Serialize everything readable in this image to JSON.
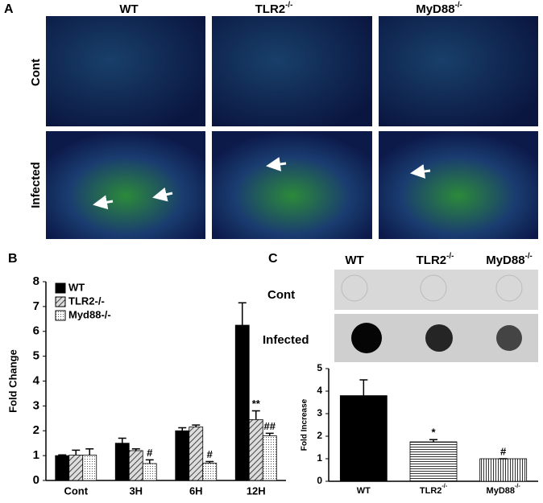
{
  "panel_a": {
    "label": "A",
    "columns": [
      {
        "text": "WT",
        "sup": ""
      },
      {
        "text": "TLR2",
        "sup": "-/-"
      },
      {
        "text": "MyD88",
        "sup": "-/-"
      }
    ],
    "rows": [
      "Cont",
      "Infected"
    ]
  },
  "panel_c_blot": {
    "label": "C",
    "columns": [
      {
        "text": "WT",
        "sup": ""
      },
      {
        "text": "TLR2",
        "sup": "-/-"
      },
      {
        "text": "MyD88",
        "sup": "-/-"
      }
    ],
    "rows": [
      "Cont",
      "Infected"
    ]
  },
  "chart_data": [
    {
      "type": "bar",
      "label": "B",
      "ylabel": "Fold Change",
      "categories": [
        "Cont",
        "3H",
        "6H",
        "12H"
      ],
      "series": [
        {
          "name": "WT",
          "color": "#000000",
          "pattern": "solid",
          "values": [
            1,
            1.5,
            2.0,
            6.25
          ],
          "errors": [
            0.03,
            0.2,
            0.12,
            0.9
          ],
          "annotations": [
            null,
            null,
            null,
            null
          ]
        },
        {
          "name": "TLR2-/-",
          "color": "#888888",
          "pattern": "diagonal",
          "values": [
            1.02,
            1.2,
            2.15,
            2.45
          ],
          "errors": [
            0.2,
            0.07,
            0.08,
            0.35
          ],
          "annotations": [
            null,
            null,
            null,
            "**"
          ]
        },
        {
          "name": "Myd88-/-",
          "color": "#999999",
          "pattern": "dots",
          "values": [
            1.02,
            0.68,
            0.7,
            1.8
          ],
          "errors": [
            0.25,
            0.15,
            0.06,
            0.1
          ],
          "annotations": [
            null,
            "#",
            "#",
            "##"
          ]
        }
      ],
      "ylim": [
        0,
        8
      ],
      "yticks": [
        0,
        1,
        2,
        3,
        4,
        5,
        6,
        7,
        8
      ],
      "legend": "top-left"
    },
    {
      "type": "bar",
      "ylabel": "Fold Increase",
      "categories": [
        {
          "text": "WT",
          "sup": ""
        },
        {
          "text": "TLR2",
          "sup": "-/-"
        },
        {
          "text": "MyD88",
          "sup": "-/-"
        }
      ],
      "series": [
        {
          "color": "#000000",
          "patterns": [
            "solid",
            "hstripes",
            "vstripes"
          ],
          "values": [
            3.8,
            1.75,
            1.0
          ],
          "errors": [
            0.7,
            0.1,
            0
          ],
          "annotations": [
            null,
            "*",
            "#"
          ]
        }
      ],
      "ylim": [
        0,
        5
      ],
      "yticks": [
        0,
        1,
        2,
        3,
        4,
        5
      ]
    }
  ]
}
